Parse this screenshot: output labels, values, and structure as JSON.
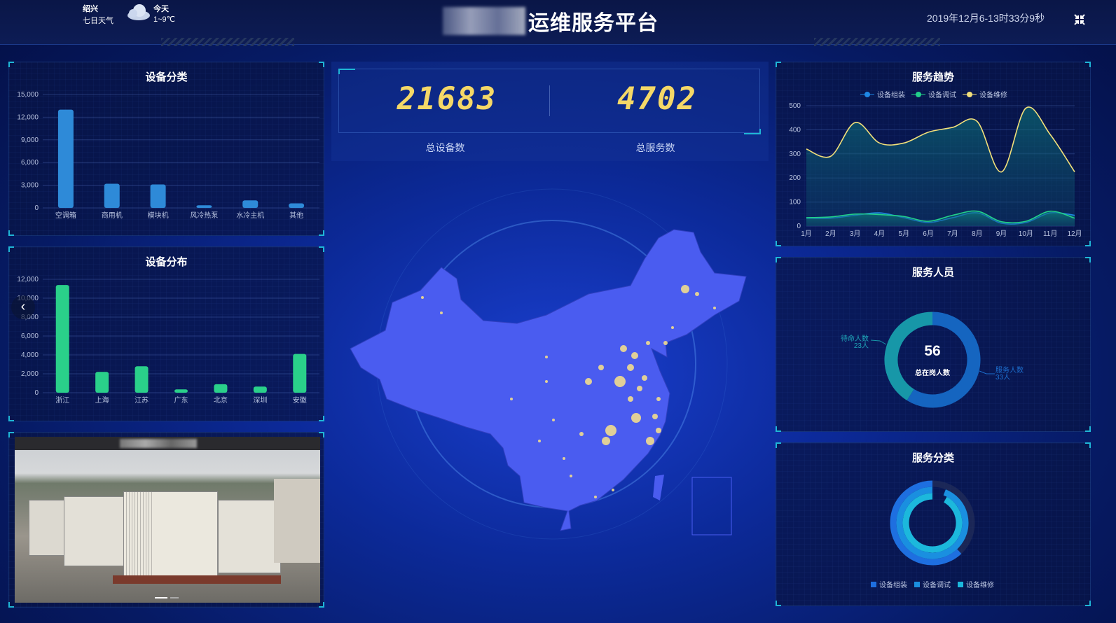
{
  "header": {
    "city": "绍兴",
    "forecast_link": "七日天气",
    "today_label": "今天",
    "temperature": "1~9℃",
    "weather_icon": "cloud-icon",
    "title": "运维服务平台",
    "datetime": "2019年12月6-13时33分9秒"
  },
  "stats": {
    "total_devices": "21683",
    "total_devices_label": "总设备数",
    "total_services": "4702",
    "total_services_label": "总服务数"
  },
  "colors": {
    "bar_blue": "#2e8ad8",
    "bar_green": "#2ad08a",
    "line_assembly": "#1e88e5",
    "line_debug": "#22d08a",
    "line_repair": "#f3e07a",
    "accent": "#1fb6d6",
    "map": "#4a5cf0",
    "city_dot": "#f1dc8e"
  },
  "chart_data": [
    {
      "type": "bar",
      "title": "设备分类",
      "categories": [
        "空调箱",
        "商用机",
        "模块机",
        "风冷热泵",
        "水冷主机",
        "其他"
      ],
      "values": [
        13000,
        3200,
        3100,
        350,
        1000,
        600
      ],
      "ylim": [
        0,
        15000
      ],
      "yticks": [
        "0",
        "3,000",
        "6,000",
        "9,000",
        "12,000",
        "15,000"
      ]
    },
    {
      "type": "bar",
      "title": "设备分布",
      "categories": [
        "浙江",
        "上海",
        "江苏",
        "广东",
        "北京",
        "深圳",
        "安徽"
      ],
      "values": [
        11400,
        2200,
        2800,
        350,
        900,
        650,
        4100
      ],
      "ylim": [
        0,
        12000
      ],
      "yticks": [
        "0",
        "2,000",
        "4,000",
        "6,000",
        "8,000",
        "10,000",
        "12,000"
      ]
    },
    {
      "type": "area",
      "title": "服务趋势",
      "categories": [
        "1月",
        "2月",
        "3月",
        "4月",
        "5月",
        "6月",
        "7月",
        "8月",
        "9月",
        "10月",
        "11月",
        "12月"
      ],
      "ylim": [
        0,
        500
      ],
      "yticks": [
        "0",
        "100",
        "200",
        "300",
        "400",
        "500"
      ],
      "legend": "top",
      "series": [
        {
          "name": "设备组装",
          "values": [
            33,
            33,
            45,
            55,
            35,
            15,
            35,
            55,
            12,
            15,
            55,
            45
          ]
        },
        {
          "name": "设备调试",
          "values": [
            35,
            38,
            50,
            48,
            40,
            20,
            45,
            62,
            18,
            20,
            62,
            33
          ]
        },
        {
          "name": "设备维修",
          "values": [
            320,
            290,
            430,
            345,
            345,
            390,
            410,
            435,
            225,
            490,
            380,
            225
          ]
        }
      ]
    },
    {
      "type": "pie",
      "title": "服务人员",
      "center_value": "56",
      "center_label": "总在岗人数",
      "slices": [
        {
          "name": "服务人数",
          "value": 33,
          "label": "33人"
        },
        {
          "name": "待命人数",
          "value": 23,
          "label": "23人"
        }
      ]
    },
    {
      "type": "pie",
      "title": "服务分类",
      "legend": "bottom",
      "series": [
        {
          "name": "设备组装",
          "fraction": 0.62
        },
        {
          "name": "设备调试",
          "fraction": 0.94
        },
        {
          "name": "设备维修",
          "fraction": 0.92
        }
      ]
    }
  ]
}
